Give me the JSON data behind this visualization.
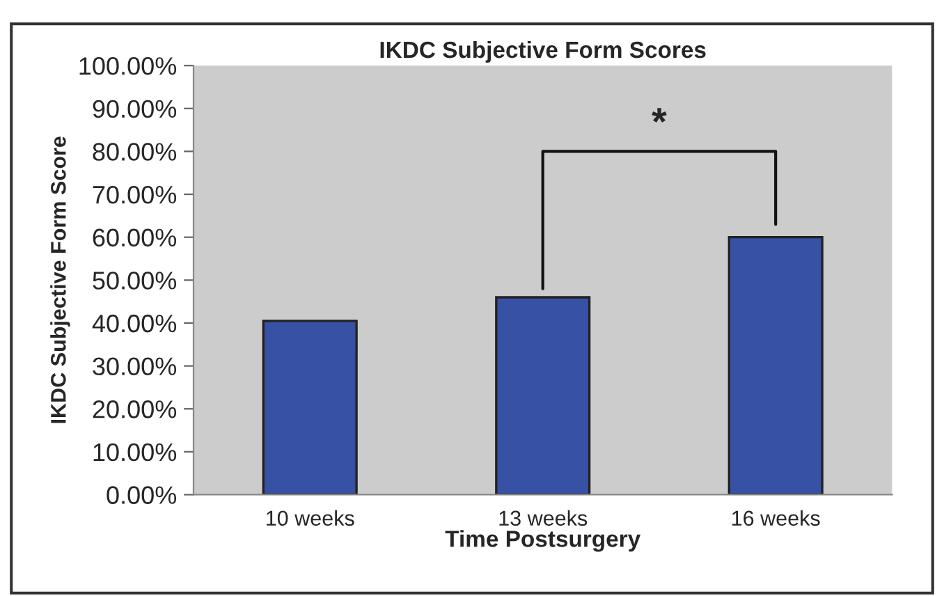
{
  "chart_data": {
    "type": "bar",
    "title": "IKDC Subjective Form Scores",
    "xlabel": "Time Postsurgery",
    "ylabel": "IKDC Subjective Form Score",
    "categories": [
      "10 weeks",
      "13 weeks",
      "16 weeks"
    ],
    "values": [
      40.5,
      46,
      60
    ],
    "color": "#3752a4",
    "ylim": [
      0,
      100
    ],
    "yticks": [
      {
        "value": 0,
        "label": "0.00%"
      },
      {
        "value": 10,
        "label": "10.00%"
      },
      {
        "value": 20,
        "label": "20.00%"
      },
      {
        "value": 30,
        "label": "30.00%"
      },
      {
        "value": 40,
        "label": "40.00%"
      },
      {
        "value": 50,
        "label": "50.00%"
      },
      {
        "value": 60,
        "label": "60.00%"
      },
      {
        "value": 70,
        "label": "70.00%"
      },
      {
        "value": 80,
        "label": "80.00%"
      },
      {
        "value": 90,
        "label": "90.00%"
      },
      {
        "value": 100,
        "label": "100.00%"
      }
    ],
    "grid": false,
    "legend": false,
    "annotations": [
      "*"
    ]
  }
}
